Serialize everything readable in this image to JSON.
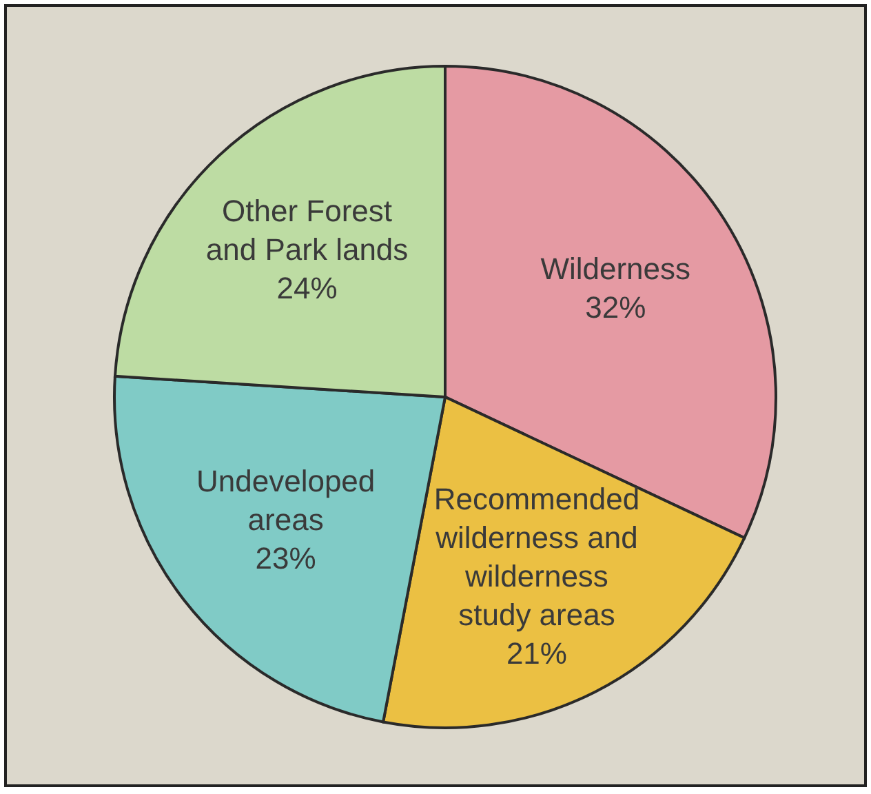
{
  "chart_data": {
    "type": "pie",
    "categories": [
      "Wilderness",
      "Recommended wilderness and wilderness study areas",
      "Undeveloped areas",
      "Other Forest and Park lands"
    ],
    "values": [
      32,
      21,
      23,
      24
    ],
    "colors": [
      "#e59aa3",
      "#ebc043",
      "#80cbc6",
      "#bddca3"
    ],
    "value_labels": [
      "32%",
      "21%",
      "23%",
      "24%"
    ]
  }
}
